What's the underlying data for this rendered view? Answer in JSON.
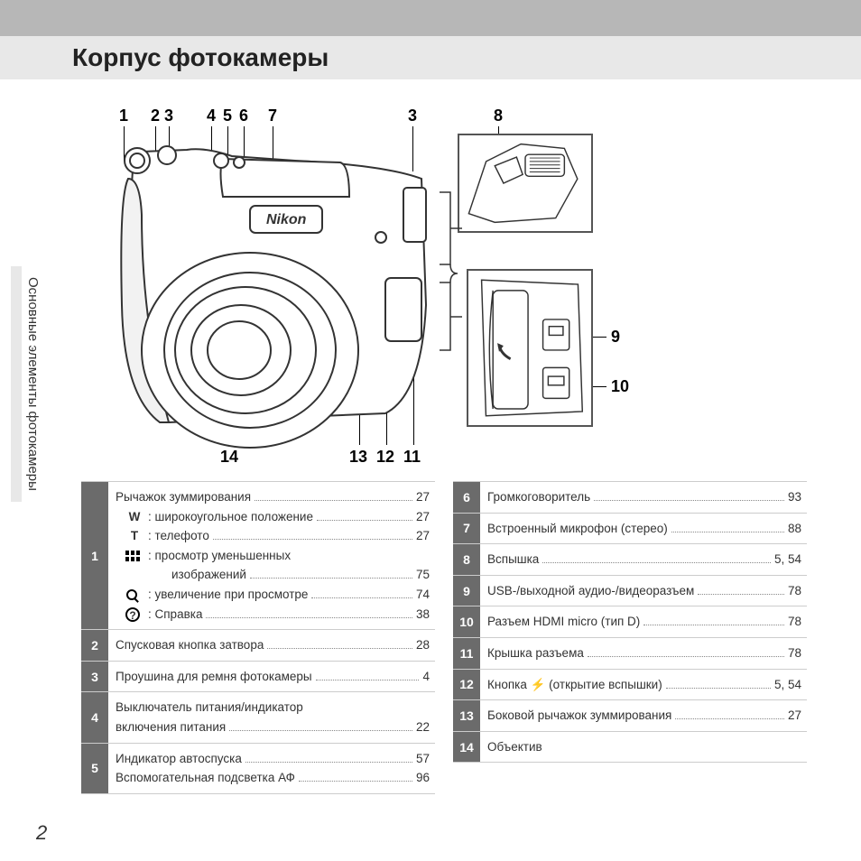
{
  "title": "Корпус фотокамеры",
  "sideTab": "Основные элементы фотокамеры",
  "pageNumber": "2",
  "diagramNumbers": {
    "top": [
      "1",
      "2",
      "3",
      "4",
      "5",
      "6",
      "7",
      "3",
      "8"
    ],
    "right": [
      "9",
      "10"
    ],
    "bottom": [
      "14",
      "13",
      "12",
      "11"
    ]
  },
  "leftTable": [
    {
      "num": "1",
      "lines": [
        {
          "label": "Рычажок зуммирования",
          "page": "27"
        },
        {
          "icon": "W",
          "label": ": широкоугольное положение",
          "page": "27",
          "indent": true
        },
        {
          "icon": "T",
          "label": ": телефото",
          "page": "27",
          "indent": true
        },
        {
          "icon": "thumb",
          "label": ": просмотр уменьшенных",
          "indent": true
        },
        {
          "label": "изображений",
          "page": "75",
          "indent2": true
        },
        {
          "icon": "search",
          "label": ": увеличение при просмотре",
          "page": "74",
          "indent": true
        },
        {
          "icon": "help",
          "label": ": Справка",
          "page": "38",
          "indent": true
        }
      ]
    },
    {
      "num": "2",
      "lines": [
        {
          "label": "Спусковая кнопка затвора",
          "page": "28"
        }
      ]
    },
    {
      "num": "3",
      "lines": [
        {
          "label": "Проушина для ремня фотокамеры",
          "page": "4"
        }
      ]
    },
    {
      "num": "4",
      "lines": [
        {
          "label": "Выключатель питания/индикатор"
        },
        {
          "label": "включения питания",
          "page": "22"
        }
      ]
    },
    {
      "num": "5",
      "lines": [
        {
          "label": "Индикатор автоспуска",
          "page": "57"
        },
        {
          "label": "Вспомогательная подсветка АФ",
          "page": "96"
        }
      ]
    }
  ],
  "rightTable": [
    {
      "num": "6",
      "lines": [
        {
          "label": "Громкоговоритель",
          "page": "93"
        }
      ]
    },
    {
      "num": "7",
      "lines": [
        {
          "label": "Встроенный микрофон (стерео)",
          "page": "88"
        }
      ]
    },
    {
      "num": "8",
      "lines": [
        {
          "label": "Вспышка",
          "page": "5, 54"
        }
      ]
    },
    {
      "num": "9",
      "lines": [
        {
          "label": "USB-/выходной аудио-/видеоразъем",
          "page": "78"
        }
      ]
    },
    {
      "num": "10",
      "lines": [
        {
          "label": "Разъем HDMI micro (тип D)",
          "page": "78"
        }
      ]
    },
    {
      "num": "11",
      "lines": [
        {
          "label": "Крышка разъема",
          "page": "78"
        }
      ]
    },
    {
      "num": "12",
      "lines": [
        {
          "icon": "flash",
          "label": "Кнопка",
          "label2": "(открытие вспышки)",
          "page": "5, 54"
        }
      ]
    },
    {
      "num": "13",
      "lines": [
        {
          "label": "Боковой рычажок зуммирования",
          "page": "27"
        }
      ]
    },
    {
      "num": "14",
      "lines": [
        {
          "label": "Объектив"
        }
      ]
    }
  ]
}
